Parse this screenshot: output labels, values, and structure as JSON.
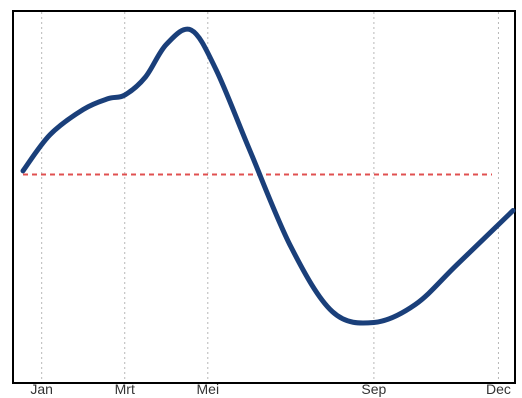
{
  "chart_data": {
    "type": "line",
    "title": "",
    "xlabel": "",
    "ylabel": "",
    "x_ticks": [
      {
        "label": "Jan",
        "month": 1
      },
      {
        "label": "Mrt",
        "month": 3
      },
      {
        "label": "Mei",
        "month": 5
      },
      {
        "label": "Sep",
        "month": 9
      },
      {
        "label": "Dec",
        "month": 12
      }
    ],
    "xlim": [
      0.55,
      12.35
    ],
    "ylim": [
      0,
      100
    ],
    "series": [
      {
        "color": "#1a3f7a",
        "points": [
          {
            "x": 0.55,
            "y": 56
          },
          {
            "x": 1.2,
            "y": 66
          },
          {
            "x": 2.0,
            "y": 73
          },
          {
            "x": 2.6,
            "y": 76
          },
          {
            "x": 3.0,
            "y": 77
          },
          {
            "x": 3.5,
            "y": 82
          },
          {
            "x": 4.0,
            "y": 91
          },
          {
            "x": 4.6,
            "y": 95
          },
          {
            "x": 5.2,
            "y": 84
          },
          {
            "x": 6.0,
            "y": 62
          },
          {
            "x": 7.0,
            "y": 35
          },
          {
            "x": 8.0,
            "y": 17
          },
          {
            "x": 9.0,
            "y": 14
          },
          {
            "x": 10.0,
            "y": 19
          },
          {
            "x": 11.0,
            "y": 30
          },
          {
            "x": 12.35,
            "y": 45
          }
        ]
      }
    ],
    "reference_line": {
      "y": 55,
      "color": "#e05050",
      "style": "dashed"
    },
    "grid": {
      "vertical": true,
      "horizontal": false,
      "color": "#b8b8b8",
      "style": "dotted"
    },
    "legend": "none"
  }
}
